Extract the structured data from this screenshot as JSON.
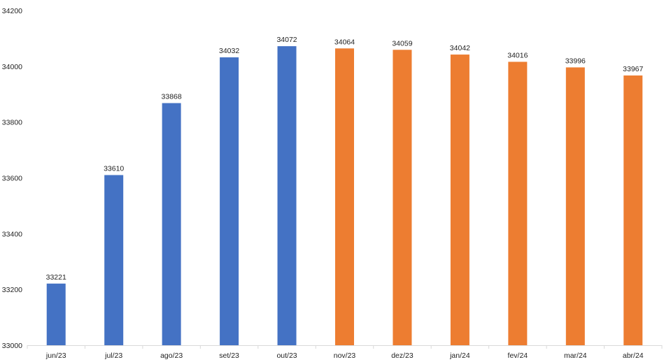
{
  "chart_data": {
    "type": "bar",
    "title": "",
    "xlabel": "",
    "ylabel": "",
    "ylim": [
      33000,
      34200
    ],
    "yticks": [
      33000,
      33200,
      33400,
      33600,
      33800,
      34000,
      34200
    ],
    "grid": false,
    "categories": [
      "jun/23",
      "jul/23",
      "ago/23",
      "set/23",
      "out/23",
      "nov/23",
      "dez/23",
      "jan/24",
      "fev/24",
      "mar/24",
      "abr/24"
    ],
    "values": [
      33221,
      33610,
      33868,
      34032,
      34072,
      34064,
      34059,
      34042,
      34016,
      33996,
      33967
    ],
    "bar_colors": [
      "#4472C4",
      "#4472C4",
      "#4472C4",
      "#4472C4",
      "#4472C4",
      "#ED7D31",
      "#ED7D31",
      "#ED7D31",
      "#ED7D31",
      "#ED7D31",
      "#ED7D31"
    ],
    "axis_color": "#D9D9D9"
  }
}
